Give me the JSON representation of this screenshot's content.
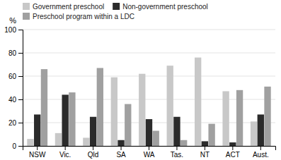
{
  "chart_data": {
    "type": "bar",
    "ylabel": "%",
    "categories": [
      "NSW",
      "Vic.",
      "Qld",
      "SA",
      "WA",
      "Tas.",
      "NT",
      "ACT",
      "Aust."
    ],
    "series": [
      {
        "name": "Government preschool",
        "color": "#c8c8c8",
        "values": [
          6,
          11,
          7,
          59,
          62,
          69,
          76,
          47,
          21
        ]
      },
      {
        "name": "Non-government preschool",
        "color": "#2b2b2b",
        "values": [
          27,
          44,
          25,
          5,
          23,
          25,
          4,
          3,
          27
        ]
      },
      {
        "name": "Preschool program within a LDC",
        "color": "#a0a0a0",
        "values": [
          66,
          46,
          67,
          36,
          13,
          5,
          19,
          48,
          51
        ]
      }
    ],
    "ylim": [
      0,
      100
    ],
    "yticks": [
      0,
      20,
      40,
      60,
      80,
      100
    ],
    "grid": true,
    "legend": "upper left"
  }
}
